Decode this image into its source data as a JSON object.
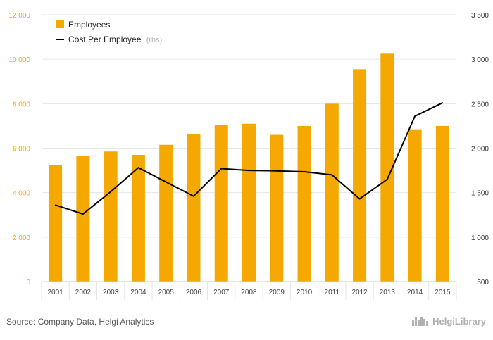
{
  "chart_data": {
    "type": "bar",
    "categories": [
      "2001",
      "2002",
      "2003",
      "2004",
      "2005",
      "2006",
      "2007",
      "2008",
      "2009",
      "2010",
      "2011",
      "2012",
      "2013",
      "2014",
      "2015"
    ],
    "series": [
      {
        "name": "Employees",
        "kind": "bar",
        "axis": "left",
        "color": "#f5a800",
        "values": [
          5250,
          5650,
          5850,
          5700,
          6150,
          6650,
          7050,
          7100,
          6600,
          7000,
          8000,
          9550,
          10250,
          6850,
          7000
        ]
      },
      {
        "name": "Cost Per Employee",
        "kind": "line",
        "axis": "right",
        "color": "#000000",
        "values": [
          1360,
          1260,
          1510,
          1780,
          1620,
          1460,
          1770,
          1750,
          1745,
          1735,
          1700,
          1430,
          1650,
          2360,
          2510
        ]
      }
    ],
    "legend": {
      "employees_label": "Employees",
      "cost_label": "Cost Per Employee",
      "cost_suffix": "(rhs)",
      "placement": "top-left"
    },
    "ylim_left": [
      0,
      12000
    ],
    "yticks_left": [
      "0",
      "2 000",
      "4 000",
      "6 000",
      "8 000",
      "10 000",
      "12 000"
    ],
    "ylim_right": [
      500,
      3500
    ],
    "yticks_right": [
      "500",
      "1 000",
      "1 500",
      "2 000",
      "2 500",
      "3 000",
      "3 500"
    ],
    "grid": true
  },
  "footer": {
    "source": "Source: Company Data, Helgi Analytics",
    "brand": "HelgiLibrary"
  },
  "colors": {
    "bar": "#f5a800",
    "line": "#000000",
    "grid": "#e6e6e6"
  }
}
